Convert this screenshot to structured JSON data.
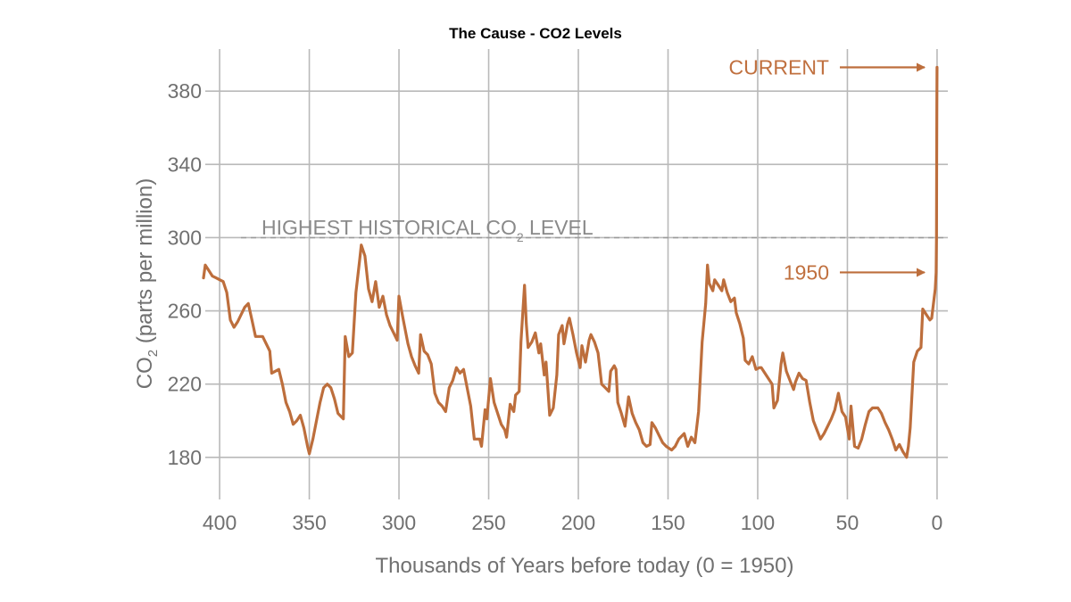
{
  "chart_data": {
    "type": "line",
    "title": "The Cause - CO2 Levels",
    "xlabel": "Thousands of Years before today (0 = 1950)",
    "ylabel": "CO₂ (parts per million)",
    "ylabel_parts": {
      "pre": "CO",
      "sub": "2",
      "post": " (parts per million)"
    },
    "x_reversed": true,
    "xlim": [
      408,
      -6
    ],
    "ylim": [
      157,
      403
    ],
    "x_ticks": [
      400,
      350,
      300,
      250,
      200,
      150,
      100,
      50,
      0
    ],
    "y_ticks": [
      180,
      220,
      260,
      300,
      340,
      380
    ],
    "grid": true,
    "line_color": "#bd6e3c",
    "grid_color": "#b9b9b9",
    "reference_line": {
      "y": 300,
      "label_pre": "HIGHEST HISTORICAL CO",
      "label_sub": "2",
      "label_post": " LEVEL",
      "style": "dashed"
    },
    "annotations": [
      {
        "label": "CURRENT",
        "y": 393
      },
      {
        "label": "1950",
        "y": 281
      }
    ],
    "series": [
      {
        "values": [
          [
            409,
            278
          ],
          [
            408,
            285
          ],
          [
            406,
            282
          ],
          [
            404,
            279
          ],
          [
            402,
            278
          ],
          [
            400,
            277
          ],
          [
            398,
            276
          ],
          [
            396,
            270
          ],
          [
            394,
            255
          ],
          [
            392,
            251
          ],
          [
            390,
            254
          ],
          [
            388,
            258
          ],
          [
            386,
            262
          ],
          [
            384,
            264
          ],
          [
            382,
            255
          ],
          [
            380,
            246
          ],
          [
            378,
            246
          ],
          [
            376,
            246
          ],
          [
            374,
            242
          ],
          [
            372,
            238
          ],
          [
            371,
            226
          ],
          [
            369,
            227
          ],
          [
            367,
            228
          ],
          [
            365,
            220
          ],
          [
            363,
            210
          ],
          [
            361,
            205
          ],
          [
            359,
            198
          ],
          [
            357,
            200
          ],
          [
            355,
            203
          ],
          [
            353,
            196
          ],
          [
            351,
            186
          ],
          [
            350,
            182
          ],
          [
            348,
            190
          ],
          [
            346,
            200
          ],
          [
            344,
            210
          ],
          [
            342,
            218
          ],
          [
            340,
            220
          ],
          [
            338,
            218
          ],
          [
            336,
            212
          ],
          [
            334,
            204
          ],
          [
            332,
            202
          ],
          [
            331,
            201
          ],
          [
            330,
            246
          ],
          [
            328,
            235
          ],
          [
            326,
            237
          ],
          [
            324,
            270
          ],
          [
            322,
            287
          ],
          [
            321,
            296
          ],
          [
            319,
            290
          ],
          [
            317,
            272
          ],
          [
            315,
            265
          ],
          [
            313,
            276
          ],
          [
            311,
            262
          ],
          [
            309,
            268
          ],
          [
            307,
            258
          ],
          [
            305,
            252
          ],
          [
            303,
            248
          ],
          [
            301,
            244
          ],
          [
            300,
            268
          ],
          [
            298,
            257
          ],
          [
            297,
            252
          ],
          [
            295,
            242
          ],
          [
            293,
            235
          ],
          [
            291,
            230
          ],
          [
            289,
            226
          ],
          [
            288,
            247
          ],
          [
            286,
            238
          ],
          [
            284,
            236
          ],
          [
            282,
            231
          ],
          [
            280,
            215
          ],
          [
            278,
            210
          ],
          [
            276,
            208
          ],
          [
            274,
            205
          ],
          [
            272,
            218
          ],
          [
            270,
            222
          ],
          [
            268,
            229
          ],
          [
            266,
            226
          ],
          [
            264,
            228
          ],
          [
            262,
            218
          ],
          [
            260,
            208
          ],
          [
            258,
            190
          ],
          [
            255,
            190
          ],
          [
            254,
            186
          ],
          [
            252,
            206
          ],
          [
            251,
            201
          ],
          [
            249,
            223
          ],
          [
            247,
            210
          ],
          [
            245,
            204
          ],
          [
            243,
            198
          ],
          [
            241,
            195
          ],
          [
            240,
            191
          ],
          [
            238,
            209
          ],
          [
            236,
            205
          ],
          [
            235,
            214
          ],
          [
            233,
            216
          ],
          [
            232,
            243
          ],
          [
            230,
            274
          ],
          [
            229,
            253
          ],
          [
            228,
            240
          ],
          [
            226,
            243
          ],
          [
            224,
            248
          ],
          [
            222,
            237
          ],
          [
            221,
            242
          ],
          [
            219,
            225
          ],
          [
            218,
            232
          ],
          [
            216,
            203
          ],
          [
            214,
            207
          ],
          [
            212,
            225
          ],
          [
            211,
            247
          ],
          [
            209,
            252
          ],
          [
            208,
            242
          ],
          [
            206,
            253
          ],
          [
            205,
            256
          ],
          [
            203,
            247
          ],
          [
            201,
            237
          ],
          [
            199,
            229
          ],
          [
            198,
            241
          ],
          [
            196,
            232
          ],
          [
            194,
            244
          ],
          [
            193,
            247
          ],
          [
            191,
            243
          ],
          [
            189,
            237
          ],
          [
            187,
            220
          ],
          [
            185,
            218
          ],
          [
            183,
            216
          ],
          [
            182,
            227
          ],
          [
            180,
            230
          ],
          [
            179,
            228
          ],
          [
            178,
            210
          ],
          [
            176,
            204
          ],
          [
            174,
            197
          ],
          [
            172,
            213
          ],
          [
            170,
            204
          ],
          [
            168,
            199
          ],
          [
            166,
            195
          ],
          [
            164,
            188
          ],
          [
            162,
            186
          ],
          [
            160,
            187
          ],
          [
            159,
            199
          ],
          [
            157,
            196
          ],
          [
            155,
            192
          ],
          [
            153,
            188
          ],
          [
            151,
            186
          ],
          [
            148,
            184
          ],
          [
            146,
            186
          ],
          [
            144,
            190
          ],
          [
            141,
            193
          ],
          [
            139,
            186
          ],
          [
            137,
            191
          ],
          [
            135,
            188
          ],
          [
            133,
            205
          ],
          [
            131,
            243
          ],
          [
            129,
            264
          ],
          [
            128,
            285
          ],
          [
            127,
            275
          ],
          [
            125,
            271
          ],
          [
            124,
            277
          ],
          [
            122,
            274
          ],
          [
            120,
            271
          ],
          [
            119,
            277
          ],
          [
            117,
            270
          ],
          [
            115,
            265
          ],
          [
            113,
            267
          ],
          [
            112,
            259
          ],
          [
            110,
            253
          ],
          [
            108,
            245
          ],
          [
            107,
            233
          ],
          [
            105,
            231
          ],
          [
            103,
            235
          ],
          [
            101,
            228
          ],
          [
            99,
            229
          ],
          [
            98,
            229
          ],
          [
            96,
            226
          ],
          [
            94,
            223
          ],
          [
            92,
            220
          ],
          [
            91,
            207
          ],
          [
            89,
            211
          ],
          [
            87,
            231
          ],
          [
            86,
            237
          ],
          [
            84,
            227
          ],
          [
            82,
            222
          ],
          [
            80,
            217
          ],
          [
            79,
            221
          ],
          [
            77,
            226
          ],
          [
            75,
            223
          ],
          [
            73,
            222
          ],
          [
            71,
            210
          ],
          [
            69,
            200
          ],
          [
            67,
            195
          ],
          [
            65,
            190
          ],
          [
            63,
            193
          ],
          [
            61,
            197
          ],
          [
            59,
            201
          ],
          [
            57,
            206
          ],
          [
            55,
            215
          ],
          [
            53,
            205
          ],
          [
            51,
            202
          ],
          [
            49,
            190
          ],
          [
            48,
            208
          ],
          [
            46,
            186
          ],
          [
            44,
            185
          ],
          [
            42,
            190
          ],
          [
            40,
            198
          ],
          [
            38,
            205
          ],
          [
            36,
            207
          ],
          [
            33,
            207
          ],
          [
            31,
            204
          ],
          [
            29,
            199
          ],
          [
            27,
            195
          ],
          [
            25,
            190
          ],
          [
            23,
            184
          ],
          [
            21,
            187
          ],
          [
            19,
            183
          ],
          [
            17,
            180
          ],
          [
            16,
            186
          ],
          [
            15,
            196
          ],
          [
            13,
            232
          ],
          [
            11,
            238
          ],
          [
            9,
            240
          ],
          [
            8,
            261
          ],
          [
            6,
            258
          ],
          [
            4,
            255
          ],
          [
            3,
            256
          ],
          [
            2,
            264
          ],
          [
            1,
            272
          ],
          [
            0.5,
            281
          ],
          [
            0.3,
            300
          ],
          [
            0.2,
            340
          ],
          [
            0.1,
            372
          ],
          [
            0,
            393
          ]
        ]
      }
    ]
  }
}
